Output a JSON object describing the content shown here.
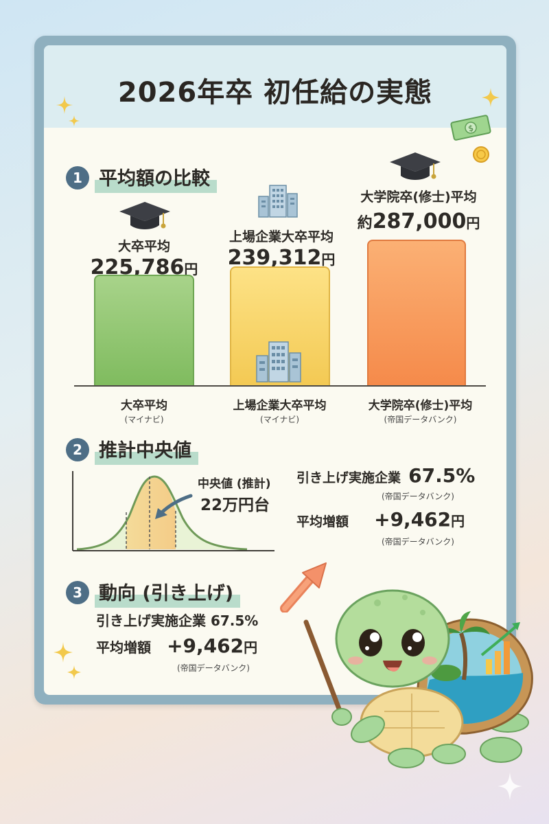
{
  "title": "2026年卒 初任給の実態",
  "section1": {
    "number": "1",
    "title": "平均額の比較",
    "bars": [
      {
        "label": "大卒平均",
        "value_text": "225,786",
        "unit": "円",
        "prefix": "",
        "category": "大卒平均",
        "source": "(マイナビ)",
        "value": 225786,
        "color": "#8cc56b"
      },
      {
        "label": "上場企業大卒平均",
        "value_text": "239,312",
        "unit": "円",
        "prefix": "",
        "category": "上場企業大卒平均",
        "source": "(マイナビ)",
        "value": 239312,
        "color": "#f7d465"
      },
      {
        "label": "大学院卒(修士)平均",
        "value_text": "287,000",
        "unit": "円",
        "prefix": "約",
        "category": "大学院卒(修士)平均",
        "source": "(帝国データバンク)",
        "value": 287000,
        "color": "#f79a58"
      }
    ]
  },
  "section2": {
    "number": "2",
    "title": "推計中央値",
    "median_label": "中央値 (推計)",
    "median_value": "22万円台",
    "raise_label": "引き上げ実施企業",
    "raise_value": "67.5%",
    "raise_source": "(帝国データバンク)",
    "increase_label": "平均増額",
    "increase_value": "+9,462",
    "increase_unit": "円",
    "increase_source": "(帝国データバンク)"
  },
  "section3": {
    "number": "3",
    "title": "動向 (引き上げ)",
    "raise_label": "引き上げ実施企業 67.5%",
    "increase_label": "平均増額",
    "increase_value": "+9,462",
    "increase_unit": "円",
    "increase_source": "(帝国データバンク)"
  },
  "icons": [
    "graduation-cap-icon",
    "office-building-icon",
    "money-bill-icon",
    "coin-icon",
    "sparkle-icon",
    "trend-arrow-icon",
    "turtle-mascot-icon"
  ],
  "colors": {
    "frame": "#8fb0bf",
    "board": "#fbfaf1",
    "accent": "#4e6e86",
    "highlight": "#b9dccb"
  }
}
